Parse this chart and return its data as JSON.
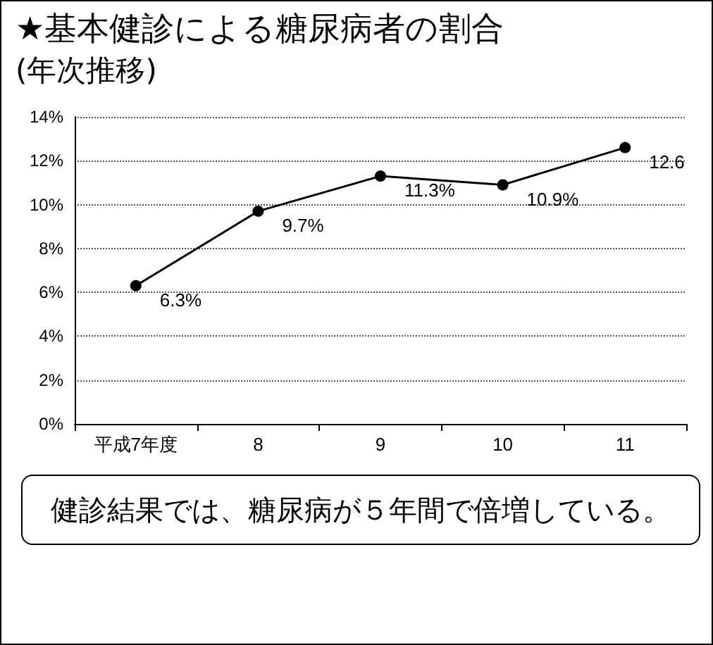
{
  "chart_data": {
    "type": "line",
    "title": "★基本健診による糖尿病者の割合",
    "subtitle": "(年次推移)",
    "categories": [
      "平成7年度",
      "8",
      "9",
      "10",
      "11"
    ],
    "values": [
      6.3,
      9.7,
      11.3,
      10.9,
      12.6
    ],
    "value_labels": [
      "6.3%",
      "9.7%",
      "11.3%",
      "10.9%",
      "12.6"
    ],
    "color": "#000000",
    "marker": "circle",
    "line_style": "solid",
    "grid": "y",
    "ylim": [
      0,
      14
    ],
    "yticks": [
      {
        "value": 0,
        "label": "0%"
      },
      {
        "value": 2,
        "label": "2%"
      },
      {
        "value": 4,
        "label": "4%"
      },
      {
        "value": 6,
        "label": "6%"
      },
      {
        "value": 8,
        "label": "8%"
      },
      {
        "value": 10,
        "label": "10%"
      },
      {
        "value": 12,
        "label": "12%"
      },
      {
        "value": 14,
        "label": "14%"
      }
    ],
    "annotations": [
      "健診結果では、糖尿病が５年間で倍増している。"
    ]
  }
}
